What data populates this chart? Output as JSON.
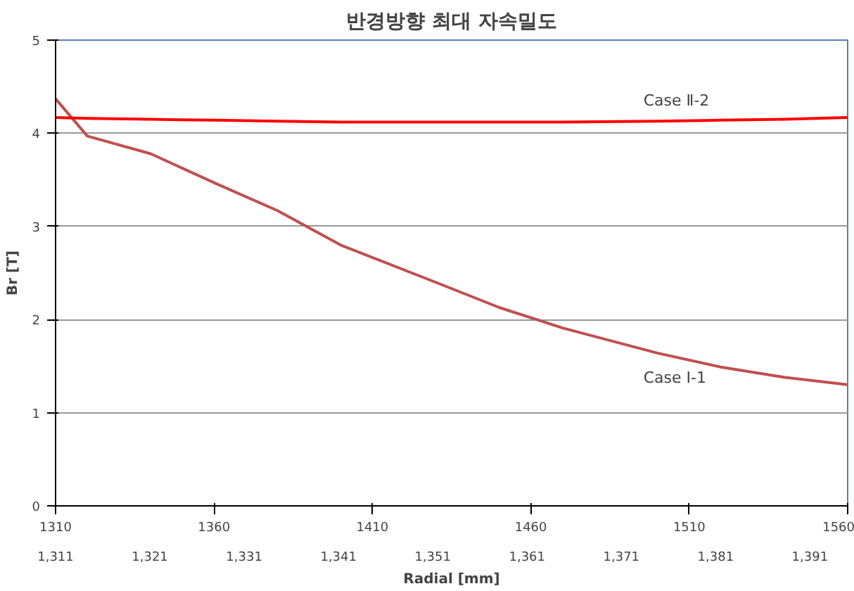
{
  "chart_data": {
    "type": "line",
    "title": "반경방향 최대 자속밀도",
    "xlabel": "Radial [mm]",
    "ylabel": "Br [T]",
    "x": [
      1310,
      1320,
      1340,
      1360,
      1380,
      1400,
      1430,
      1450,
      1470,
      1500,
      1520,
      1540,
      1560
    ],
    "series": [
      {
        "name": "Case I-1",
        "color": "#c0504d",
        "values": [
          4.37,
          3.97,
          3.78,
          3.47,
          3.17,
          2.8,
          2.4,
          2.13,
          1.91,
          1.64,
          1.49,
          1.38,
          1.3
        ]
      },
      {
        "name": "Case Ⅱ-2",
        "color": "#ff0000",
        "values": [
          4.17,
          4.16,
          4.15,
          4.14,
          4.13,
          4.12,
          4.12,
          4.12,
          4.12,
          4.13,
          4.14,
          4.15,
          4.17
        ]
      }
    ],
    "xlim": [
      1310,
      1560
    ],
    "xticks": [
      1310,
      1360,
      1410,
      1460,
      1510,
      1560
    ],
    "x2lim": [
      1311,
      1395
    ],
    "x2ticks": [
      {
        "value": 1311,
        "label": "1,311"
      },
      {
        "value": 1321,
        "label": "1,321"
      },
      {
        "value": 1331,
        "label": "1,331"
      },
      {
        "value": 1341,
        "label": "1,341"
      },
      {
        "value": 1351,
        "label": "1,351"
      },
      {
        "value": 1361,
        "label": "1,361"
      },
      {
        "value": 1371,
        "label": "1,371"
      },
      {
        "value": 1381,
        "label": "1,381"
      },
      {
        "value": 1391,
        "label": "1,391"
      }
    ],
    "ylim": [
      0,
      5
    ],
    "yticks": [
      0,
      1,
      2,
      3,
      4,
      5
    ],
    "grid": "y",
    "marker": "none",
    "line_style": "solid"
  }
}
